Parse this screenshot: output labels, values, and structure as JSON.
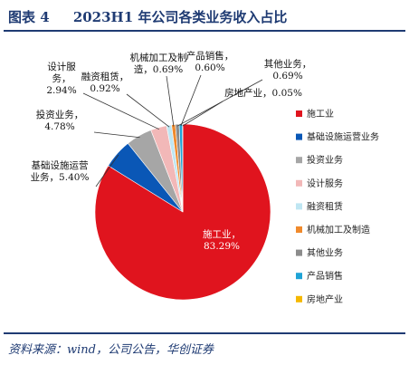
{
  "header": {
    "figure_label": "图表 4",
    "title": "2023H1 年公司各类业务收入占比"
  },
  "source": "资料来源：wind，公司公告，华创证券",
  "colors": {
    "title": "#1f3b73",
    "rule": "#1f3b73"
  },
  "chart_data": {
    "type": "pie",
    "title": "2023H1 年公司各类业务收入占比",
    "legend_position": "right",
    "unit": "%",
    "slices": [
      {
        "name": "施工业",
        "value": 83.29,
        "label": "施工业，83.29%",
        "color": "#e0141e"
      },
      {
        "name": "基础设施运营业务",
        "value": 5.4,
        "label": "基础设施运营业务，5.40%",
        "color": "#0a57b6"
      },
      {
        "name": "投资业务",
        "value": 4.78,
        "label": "投资业务，4.78%",
        "color": "#a6a6a6"
      },
      {
        "name": "设计服务",
        "value": 2.94,
        "label": "设计服务，2.94%",
        "color": "#f2b8b8"
      },
      {
        "name": "融资租赁",
        "value": 0.92,
        "label": "融资租赁，0.92%",
        "color": "#bfe6f2"
      },
      {
        "name": "机械加工及制造",
        "value": 0.69,
        "label": "机械加工及制造，0.69%",
        "color": "#f08a2c"
      },
      {
        "name": "其他业务",
        "value": 0.69,
        "label": "其他业务，0.69%",
        "color": "#8c8c8c"
      },
      {
        "name": "产品销售",
        "value": 0.6,
        "label": "产品销售，0.60%",
        "color": "#1fa3d6"
      },
      {
        "name": "房地产业",
        "value": 0.05,
        "label": "房地产业，0.05%",
        "color": "#f5b800"
      }
    ]
  }
}
